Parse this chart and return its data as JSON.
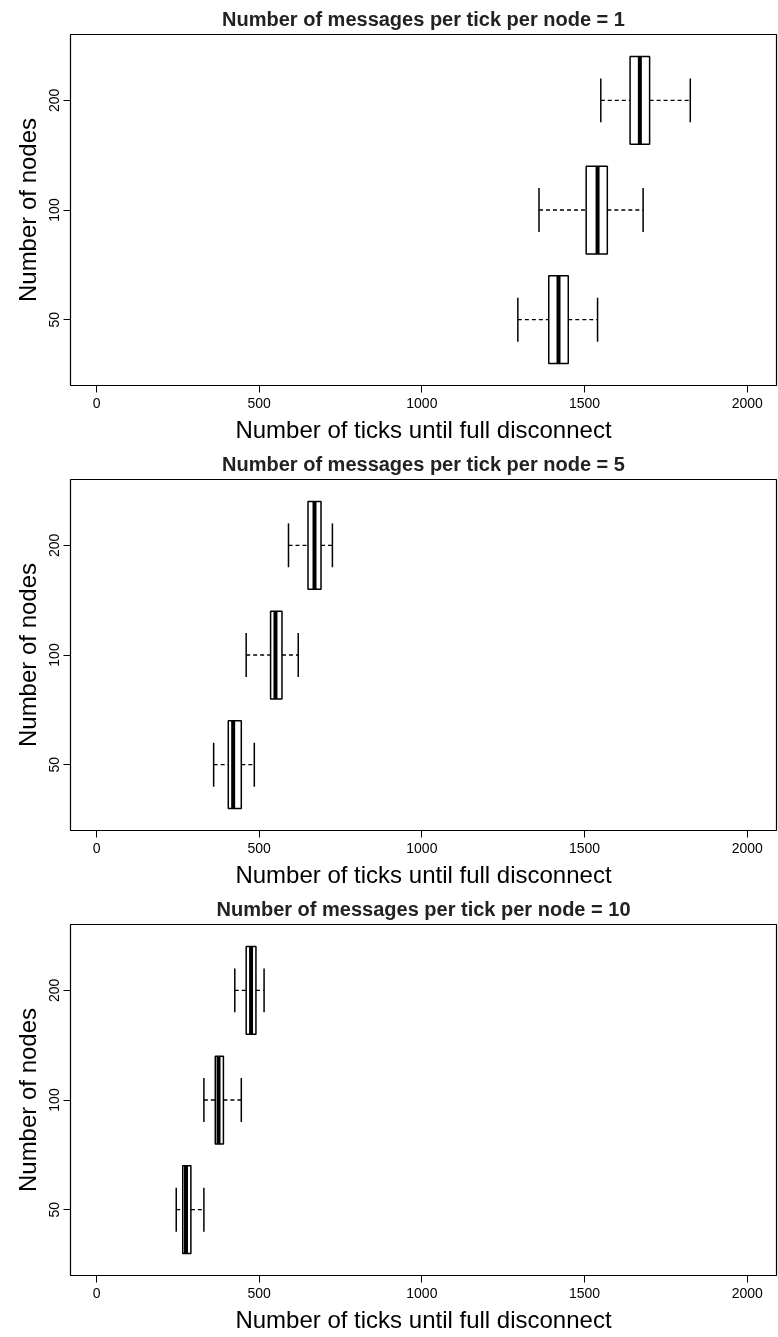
{
  "chart_data": [
    {
      "type": "box",
      "orientation": "horizontal",
      "title": "Number of messages per tick per node = 1",
      "xlabel": "Number of ticks until full disconnect",
      "ylabel": "Number of nodes",
      "categories": [
        "200",
        "100",
        "50"
      ],
      "boxes": [
        {
          "low": 1550,
          "q1": 1640,
          "median": 1670,
          "q3": 1700,
          "high": 1825
        },
        {
          "low": 1360,
          "q1": 1505,
          "median": 1540,
          "q3": 1570,
          "high": 1680
        },
        {
          "low": 1295,
          "q1": 1390,
          "median": 1420,
          "q3": 1450,
          "high": 1540
        }
      ],
      "xlim": [
        -80,
        2090
      ],
      "xticks": [
        0,
        500,
        1000,
        1500,
        2000
      ],
      "grid": false,
      "line_style": "dashed"
    },
    {
      "type": "box",
      "orientation": "horizontal",
      "title": "Number of messages per tick per node = 5",
      "xlabel": "Number of ticks until full disconnect",
      "ylabel": "Number of nodes",
      "categories": [
        "200",
        "100",
        "50"
      ],
      "boxes": [
        {
          "low": 590,
          "q1": 650,
          "median": 670,
          "q3": 690,
          "high": 725
        },
        {
          "low": 460,
          "q1": 535,
          "median": 550,
          "q3": 570,
          "high": 620
        },
        {
          "low": 360,
          "q1": 405,
          "median": 420,
          "q3": 445,
          "high": 485
        }
      ],
      "xlim": [
        -80,
        2090
      ],
      "xticks": [
        0,
        500,
        1000,
        1500,
        2000
      ],
      "grid": false,
      "line_style": "dashed"
    },
    {
      "type": "box",
      "orientation": "horizontal",
      "title": "Number of messages per tick per node = 10",
      "xlabel": "Number of ticks until full disconnect",
      "ylabel": "Number of nodes",
      "categories": [
        "200",
        "100",
        "50"
      ],
      "boxes": [
        {
          "low": 425,
          "q1": 460,
          "median": 475,
          "q3": 490,
          "high": 515
        },
        {
          "low": 330,
          "q1": 365,
          "median": 375,
          "q3": 390,
          "high": 445
        },
        {
          "low": 245,
          "q1": 265,
          "median": 275,
          "q3": 290,
          "high": 330
        }
      ],
      "xlim": [
        -80,
        2090
      ],
      "xticks": [
        0,
        500,
        1000,
        1500,
        2000
      ],
      "grid": false,
      "line_style": "dashed"
    }
  ]
}
